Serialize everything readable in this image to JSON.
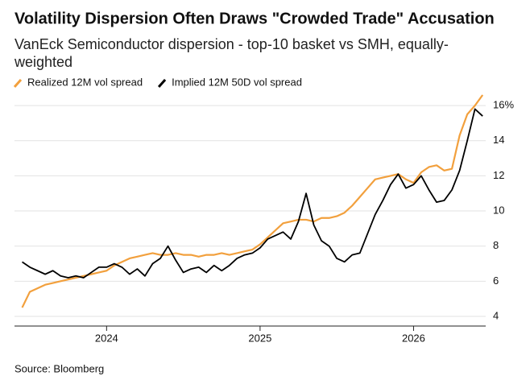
{
  "chart_data": {
    "type": "line",
    "title": "Volatility Dispersion Often Draws \"Crowded Trade\" Accusation",
    "subtitle": "VanEck Semiconductor dispersion - top-10 basket vs SMH, equally-weighted",
    "source": "Source: Bloomberg",
    "x": [
      2023.45,
      2023.5,
      2023.55,
      2023.6,
      2023.65,
      2023.7,
      2023.75,
      2023.8,
      2023.85,
      2023.9,
      2023.95,
      2024.0,
      2024.05,
      2024.1,
      2024.15,
      2024.2,
      2024.25,
      2024.3,
      2024.35,
      2024.4,
      2024.45,
      2024.5,
      2024.55,
      2024.6,
      2024.65,
      2024.7,
      2024.75,
      2024.8,
      2024.85,
      2024.9,
      2024.95,
      2025.0,
      2025.05,
      2025.1,
      2025.15,
      2025.2,
      2025.25,
      2025.3,
      2025.35,
      2025.4,
      2025.45,
      2025.5,
      2025.55,
      2025.6,
      2025.65,
      2025.7,
      2025.75,
      2025.8,
      2025.85,
      2025.9,
      2025.95,
      2026.0,
      2026.05,
      2026.1,
      2026.15,
      2026.2,
      2026.25,
      2026.3,
      2026.35,
      2026.4,
      2026.45
    ],
    "series": [
      {
        "name": "Realized 12M vol spread",
        "color": "#f2a03d",
        "values": [
          4.5,
          5.4,
          5.6,
          5.8,
          5.9,
          6.0,
          6.1,
          6.2,
          6.3,
          6.4,
          6.5,
          6.6,
          6.9,
          7.1,
          7.3,
          7.4,
          7.5,
          7.6,
          7.5,
          7.5,
          7.6,
          7.5,
          7.5,
          7.4,
          7.5,
          7.5,
          7.6,
          7.5,
          7.6,
          7.7,
          7.8,
          8.1,
          8.5,
          8.9,
          9.3,
          9.4,
          9.5,
          9.5,
          9.4,
          9.6,
          9.6,
          9.7,
          9.9,
          10.3,
          10.8,
          11.3,
          11.8,
          11.9,
          12.0,
          12.1,
          11.8,
          11.6,
          12.2,
          12.5,
          12.6,
          12.3,
          12.4,
          14.3,
          15.5,
          16.0,
          16.6
        ]
      },
      {
        "name": "Implied 12M 50D vol spread",
        "color": "#000000",
        "values": [
          7.1,
          6.8,
          6.6,
          6.4,
          6.6,
          6.3,
          6.2,
          6.3,
          6.2,
          6.5,
          6.8,
          6.8,
          7.0,
          6.8,
          6.4,
          6.7,
          6.3,
          7.0,
          7.3,
          8.0,
          7.2,
          6.5,
          6.7,
          6.8,
          6.5,
          6.9,
          6.6,
          6.9,
          7.3,
          7.5,
          7.6,
          7.9,
          8.4,
          8.6,
          8.8,
          8.4,
          9.4,
          11.0,
          9.2,
          8.3,
          8.0,
          7.3,
          7.1,
          7.5,
          7.6,
          8.7,
          9.8,
          10.6,
          11.5,
          12.1,
          11.3,
          11.5,
          12.0,
          11.2,
          10.5,
          10.6,
          11.2,
          12.3,
          14.0,
          15.8,
          15.4
        ]
      }
    ],
    "xlim": [
      2023.4,
      2026.47
    ],
    "xticks": [
      2024,
      2025,
      2026
    ],
    "ylim": [
      3.45,
      16.6
    ],
    "yticks": [
      4,
      6,
      8,
      10,
      12,
      14,
      {
        "value": 16,
        "label": "16%"
      }
    ],
    "grid": true
  }
}
